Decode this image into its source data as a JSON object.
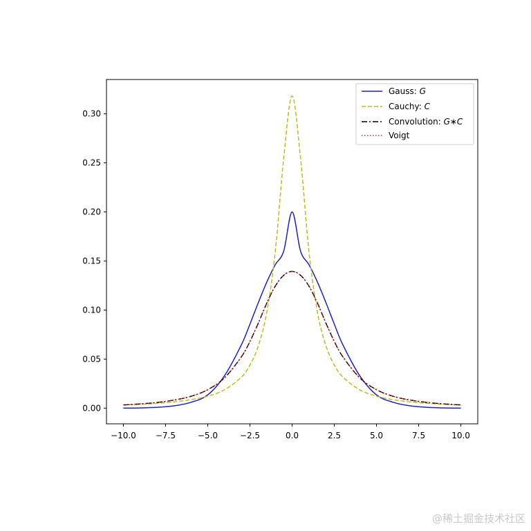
{
  "chart_data": {
    "type": "line",
    "title": "",
    "xlabel": "",
    "ylabel": "",
    "xlim": [
      -11.0,
      11.0
    ],
    "ylim": [
      -0.016,
      0.335
    ],
    "x_ticks": [
      -10.0,
      -7.5,
      -5.0,
      -2.5,
      0.0,
      2.5,
      5.0,
      7.5,
      10.0
    ],
    "x_tick_labels": [
      "−10.0",
      "−7.5",
      "−5.0",
      "−2.5",
      "0.0",
      "2.5",
      "5.0",
      "7.5",
      "10.0"
    ],
    "y_ticks": [
      0.0,
      0.05,
      0.1,
      0.15,
      0.2,
      0.25,
      0.3
    ],
    "y_tick_labels": [
      "0.00",
      "0.05",
      "0.10",
      "0.15",
      "0.20",
      "0.25",
      "0.30"
    ],
    "grid": false,
    "legend_position": "top-right",
    "x": [
      -10,
      -9,
      -8,
      -7,
      -6,
      -5,
      -4,
      -3,
      -2.5,
      -2,
      -1.5,
      -1,
      -0.5,
      0,
      0.5,
      1,
      1.5,
      2,
      2.5,
      3,
      4,
      5,
      6,
      7,
      8,
      9,
      10
    ],
    "series": [
      {
        "name": "Gauss: G",
        "color": "#1f1fcc",
        "dash": "solid",
        "values": [
          0.0,
          0.0002,
          0.0008,
          0.0023,
          0.0059,
          0.0135,
          0.0332,
          0.0648,
          0.0856,
          0.1077,
          0.1285,
          0.1462,
          0.16,
          0.2,
          0.16,
          0.1462,
          0.1285,
          0.1077,
          0.0856,
          0.0648,
          0.0332,
          0.0135,
          0.0059,
          0.0023,
          0.0008,
          0.0002,
          0.0
        ]
      },
      {
        "name": "Cauchy: C",
        "color": "#bcbd22",
        "dash": "dashed",
        "values": [
          0.0032,
          0.0039,
          0.0049,
          0.0064,
          0.0086,
          0.0122,
          0.0187,
          0.0318,
          0.0439,
          0.0637,
          0.0979,
          0.1592,
          0.2546,
          0.3183,
          0.2546,
          0.1592,
          0.0979,
          0.0637,
          0.0439,
          0.0318,
          0.0187,
          0.0122,
          0.0086,
          0.0064,
          0.0049,
          0.0039,
          0.0032
        ]
      },
      {
        "name": "Convolution: G∗C",
        "color": "#000000",
        "dash": "dashdot",
        "values": [
          0.0033,
          0.0043,
          0.0058,
          0.0082,
          0.012,
          0.0188,
          0.031,
          0.0525,
          0.068,
          0.0868,
          0.1071,
          0.1243,
          0.1354,
          0.1394,
          0.1354,
          0.1243,
          0.1071,
          0.0868,
          0.068,
          0.0525,
          0.031,
          0.0188,
          0.012,
          0.0082,
          0.0058,
          0.0043,
          0.0033
        ]
      },
      {
        "name": "Voigt",
        "color": "#d62728",
        "dash": "dotted",
        "values": [
          0.0033,
          0.0043,
          0.0058,
          0.0082,
          0.012,
          0.0188,
          0.031,
          0.0525,
          0.068,
          0.0868,
          0.1071,
          0.1243,
          0.1354,
          0.1394,
          0.1354,
          0.1243,
          0.1071,
          0.0868,
          0.068,
          0.0525,
          0.031,
          0.0188,
          0.012,
          0.0082,
          0.0058,
          0.0043,
          0.0033
        ]
      }
    ]
  },
  "legend": {
    "items": [
      {
        "prefix": "Gauss: ",
        "symbol": "G"
      },
      {
        "prefix": "Cauchy: ",
        "symbol": "C"
      },
      {
        "prefix": "Convolution: ",
        "symbol": "G∗C"
      },
      {
        "prefix": "Voigt",
        "symbol": ""
      }
    ]
  },
  "watermark": "@稀土掘金技术社区"
}
